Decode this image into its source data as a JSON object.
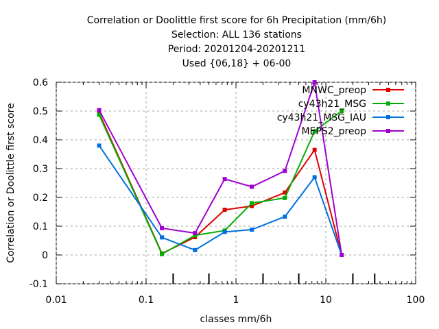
{
  "chart_data": {
    "type": "line",
    "title_lines": [
      "Correlation or Doolittle first score  for 6h Precipitation (mm/6h)",
      "Selection: ALL    136 stations",
      "Period: 20201204-20201211",
      "Used {06,18} + 06-00"
    ],
    "xlabel": "classes mm/6h",
    "ylabel": "Correlation or Doolittle first score",
    "xscale": "log",
    "xlim": [
      0.01,
      100
    ],
    "ylim": [
      -0.1,
      0.6
    ],
    "xticks": [
      {
        "value": 0.01,
        "label": "0.01"
      },
      {
        "value": 0.1,
        "label": "0.1"
      },
      {
        "value": 1,
        "label": "1"
      },
      {
        "value": 10,
        "label": "10"
      },
      {
        "value": 100,
        "label": "100"
      }
    ],
    "yticks": [
      {
        "value": -0.1,
        "label": "-0.1"
      },
      {
        "value": 0,
        "label": "0"
      },
      {
        "value": 0.1,
        "label": "0.1"
      },
      {
        "value": 0.2,
        "label": "0.2"
      },
      {
        "value": 0.3,
        "label": "0.3"
      },
      {
        "value": 0.4,
        "label": "0.4"
      },
      {
        "value": 0.5,
        "label": "0.5"
      },
      {
        "value": 0.6,
        "label": "0.6"
      }
    ],
    "class_ticks": [
      0.2,
      0.5,
      2,
      5,
      20,
      35
    ],
    "x": [
      0.03,
      0.15,
      0.35,
      0.75,
      1.5,
      3.5,
      7.5,
      15
    ],
    "legend_position": "top-right",
    "series": [
      {
        "name": "MNWC_preop",
        "color": "#e00000",
        "values": [
          0.493,
          0.005,
          0.062,
          0.157,
          0.17,
          0.217,
          0.365,
          0.0
        ]
      },
      {
        "name": "cy43h21_MSG",
        "color": "#00b000",
        "values": [
          0.487,
          0.003,
          0.068,
          0.085,
          0.18,
          0.198,
          0.43,
          0.5
        ]
      },
      {
        "name": "cy43h21_MSG_IAU",
        "color": "#0070e0",
        "values": [
          0.38,
          0.061,
          0.017,
          0.08,
          0.088,
          0.133,
          0.27,
          0.0
        ]
      },
      {
        "name": "MEPS2_preop",
        "color": "#a000d0",
        "values": [
          0.503,
          0.093,
          0.076,
          0.264,
          0.237,
          0.292,
          0.6,
          0.0
        ]
      }
    ]
  }
}
